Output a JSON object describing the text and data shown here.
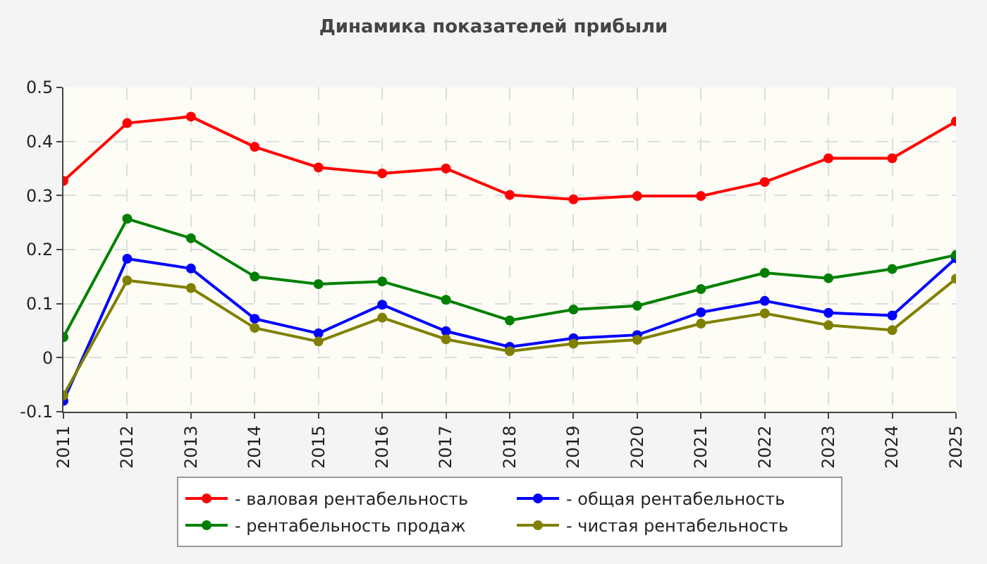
{
  "chart_data": {
    "type": "line",
    "title": "Динамика показателей прибыли",
    "categories": [
      "2011",
      "2012",
      "2013",
      "2014",
      "2015",
      "2016",
      "2017",
      "2018",
      "2019",
      "2020",
      "2021",
      "2022",
      "2023",
      "2024",
      "2025"
    ],
    "series": [
      {
        "name": "- валовая рентабельность",
        "color": "#ff0000",
        "values": [
          0.327,
          0.434,
          0.446,
          0.39,
          0.352,
          0.341,
          0.35,
          0.301,
          0.293,
          0.299,
          0.299,
          0.325,
          0.369,
          0.369,
          0.437
        ]
      },
      {
        "name": "- общая рентабельность",
        "color": "#0000ff",
        "values": [
          -0.08,
          0.183,
          0.165,
          0.072,
          0.045,
          0.098,
          0.049,
          0.02,
          0.036,
          0.042,
          0.084,
          0.105,
          0.083,
          0.078,
          0.184
        ]
      },
      {
        "name": "- рентабельность продаж",
        "color": "#008000",
        "values": [
          0.038,
          0.257,
          0.221,
          0.15,
          0.136,
          0.141,
          0.107,
          0.069,
          0.089,
          0.096,
          0.127,
          0.157,
          0.147,
          0.164,
          0.19
        ]
      },
      {
        "name": "- чистая рентабельность",
        "color": "#808000",
        "values": [
          -0.07,
          0.143,
          0.129,
          0.055,
          0.03,
          0.074,
          0.034,
          0.012,
          0.026,
          0.033,
          0.063,
          0.082,
          0.06,
          0.051,
          0.146
        ]
      }
    ],
    "ylim": [
      -0.1,
      0.5
    ],
    "yticks": [
      -0.1,
      0,
      0.1,
      0.2,
      0.3,
      0.4,
      0.5
    ],
    "grid": true,
    "legend": "bottom",
    "marker": "circle",
    "line_style": "solid"
  }
}
